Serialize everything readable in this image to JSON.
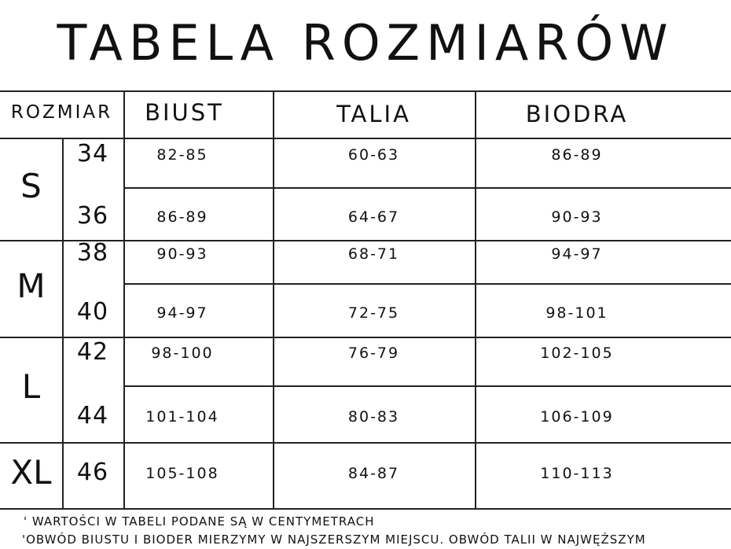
{
  "title": "TABELA ROZMIARÓW",
  "headers": {
    "size": "ROZMIAR",
    "bust": "BIUST",
    "waist": "TALIA",
    "hips": "BIODRA"
  },
  "groups": [
    {
      "label": "S",
      "rows": [
        {
          "size": "34",
          "bust": "82-85",
          "waist": "60-63",
          "hips": "86-89"
        },
        {
          "size": "36",
          "bust": "86-89",
          "waist": "64-67",
          "hips": "90-93"
        }
      ]
    },
    {
      "label": "M",
      "rows": [
        {
          "size": "38",
          "bust": "90-93",
          "waist": "68-71",
          "hips": "94-97"
        },
        {
          "size": "40",
          "bust": "94-97",
          "waist": "72-75",
          "hips": "98-101"
        }
      ]
    },
    {
      "label": "L",
      "rows": [
        {
          "size": "42",
          "bust": "98-100",
          "waist": "76-79",
          "hips": "102-105"
        },
        {
          "size": "44",
          "bust": "101-104",
          "waist": "80-83",
          "hips": "106-109"
        }
      ]
    },
    {
      "label": "XL",
      "rows": [
        {
          "size": "46",
          "bust": "105-108",
          "waist": "84-87",
          "hips": "110-113"
        }
      ]
    }
  ],
  "notes": [
    "' WARTOŚCI W TABELI PODANE SĄ W CENTYMETRACH",
    "'OBWÓD BIUSTU I BIODER MIERZYMY W NAJSZERSZYM MIEJSCU. OBWÓD TALII W NAJWĘŻSZYM"
  ]
}
